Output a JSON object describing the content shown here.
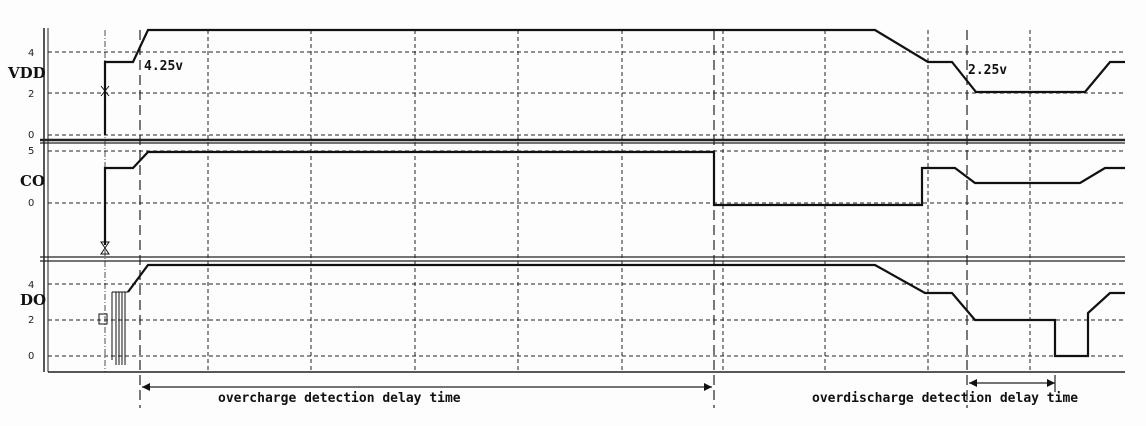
{
  "signals": [
    {
      "name": "VDD",
      "ticks": [
        "4",
        "2",
        "0"
      ]
    },
    {
      "name": "CO",
      "ticks": [
        "5",
        "0"
      ]
    },
    {
      "name": "DO",
      "ticks": [
        "4",
        "2",
        "0"
      ]
    }
  ],
  "annotations": {
    "overcharge_threshold": "4.25v",
    "overdischarge_threshold": "2.25v",
    "overcharge_delay": "overcharge detection delay time",
    "overdischarge_delay": "overdischarge detection delay time"
  },
  "colors": {
    "trace": "#111111",
    "grid": "#222222"
  }
}
